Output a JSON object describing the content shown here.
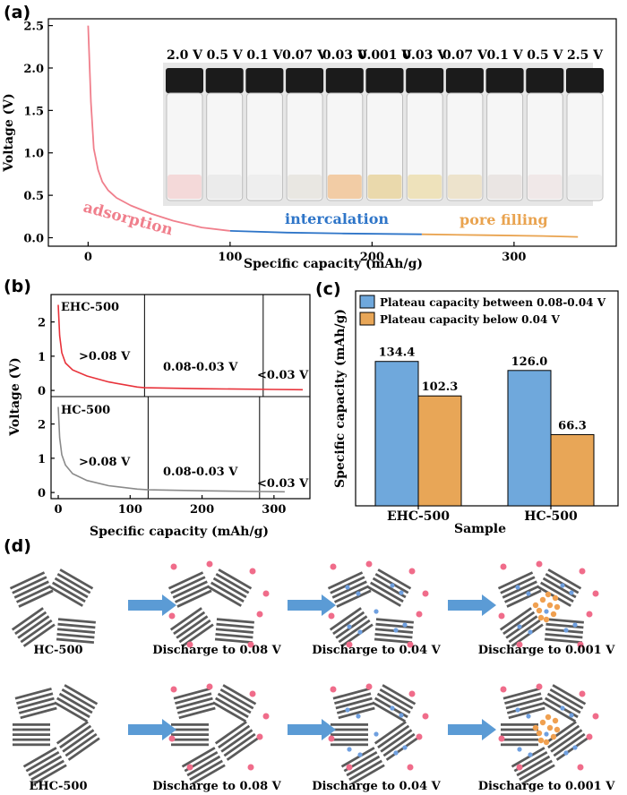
{
  "panels": {
    "a": "(a)",
    "b": "(b)",
    "c": "(c)",
    "d": "(d)"
  },
  "colors": {
    "red": "#e8323a",
    "pink": "#f07f8c",
    "blue": "#2e75c8",
    "orange": "#e9a34f",
    "gray": "#8a8a8a",
    "barBlue": "#6fa8dc",
    "barOrange": "#e8a657",
    "stack": "#5a5a5a",
    "arrow": "#5b9bd5",
    "dotPink": "#f06c8a",
    "dotBlue": "#6fa0e0",
    "dotOrange": "#f0a050"
  },
  "chart_data": [
    {
      "id": "a",
      "type": "line",
      "xlabel": "Specific capacity (mAh/g)",
      "ylabel": "Voltage (V)",
      "xlim": [
        -28,
        372
      ],
      "ylim": [
        -0.1,
        2.58
      ],
      "xticks": [
        0,
        100,
        200,
        300
      ],
      "yticks": [
        0.0,
        0.5,
        1.0,
        1.5,
        2.0,
        2.5
      ],
      "ytick_labels": [
        "0.0",
        "0.5",
        "1.0",
        "1.5",
        "2.0",
        "2.5"
      ],
      "series": [
        {
          "name": "adsorption",
          "x": [
            0,
            2,
            4,
            7,
            10,
            14,
            20,
            30,
            45,
            60,
            80,
            100
          ],
          "y": [
            2.5,
            1.6,
            1.05,
            0.8,
            0.66,
            0.56,
            0.47,
            0.38,
            0.28,
            0.2,
            0.12,
            0.08
          ]
        },
        {
          "name": "intercalation",
          "x": [
            100,
            140,
            180,
            235
          ],
          "y": [
            0.08,
            0.06,
            0.05,
            0.04
          ]
        },
        {
          "name": "pore filling",
          "x": [
            235,
            280,
            320,
            345
          ],
          "y": [
            0.04,
            0.03,
            0.02,
            0.01
          ]
        }
      ],
      "region_labels": [
        "adsorption",
        "intercalation",
        "pore filling"
      ],
      "vial_labels": [
        "2.0 V",
        "0.5 V",
        "0.1 V",
        "0.07 V",
        "0.03 V",
        "0.001 V",
        "0.03 V",
        "0.07 V",
        "0.1 V",
        "0.5 V",
        "2.5 V"
      ]
    },
    {
      "id": "b",
      "type": "line",
      "xlabel": "Specific capacity (mAh/g)",
      "ylabel": "Voltage (V)",
      "xlim": [
        -10,
        350
      ],
      "xticks": [
        0,
        100,
        200,
        300
      ],
      "subplots": [
        {
          "name": "EHC-500",
          "ylim": [
            -0.18,
            2.8
          ],
          "yticks": [
            0,
            1,
            2
          ],
          "x": [
            0,
            2,
            5,
            10,
            20,
            40,
            70,
            110,
            120,
            200,
            300,
            340
          ],
          "y": [
            2.5,
            1.6,
            1.1,
            0.8,
            0.6,
            0.42,
            0.25,
            0.1,
            0.08,
            0.05,
            0.03,
            0.02
          ],
          "dividers": [
            120,
            285
          ],
          "labels": [
            ">0.08 V",
            "0.08-0.03 V",
            "<0.03 V"
          ]
        },
        {
          "name": "HC-500",
          "ylim": [
            -0.18,
            2.8
          ],
          "yticks": [
            0,
            1,
            2
          ],
          "x": [
            0,
            2,
            5,
            10,
            20,
            40,
            70,
            110,
            125,
            200,
            280,
            315
          ],
          "y": [
            2.5,
            1.6,
            1.1,
            0.8,
            0.55,
            0.35,
            0.2,
            0.1,
            0.08,
            0.05,
            0.03,
            0.02
          ],
          "dividers": [
            125,
            280
          ],
          "labels": [
            ">0.08 V",
            "0.08-0.03 V",
            "<0.03 V"
          ]
        }
      ]
    },
    {
      "id": "c",
      "type": "bar",
      "xlabel": "Sample",
      "ylabel": "Specific capacity (mAh/g)",
      "categories": [
        "EHC-500",
        "HC-500"
      ],
      "ylim": [
        0,
        200
      ],
      "series": [
        {
          "name": "Plateau capacity between 0.08-0.04 V",
          "values": [
            134.4,
            126.0
          ],
          "labels": [
            "134.4",
            "126.0"
          ]
        },
        {
          "name": "Plateau capacity below 0.04 V",
          "values": [
            102.3,
            66.3
          ],
          "labels": [
            "102.3",
            "66.3"
          ]
        }
      ]
    }
  ],
  "schematic": {
    "row1_labels": [
      "HC-500",
      "Discharge to 0.08 V",
      "Discharge to 0.04 V",
      "Discharge to 0.001 V"
    ],
    "row2_labels": [
      "EHC-500",
      "Discharge to 0.08 V",
      "Discharge to 0.04 V",
      "Discharge to 0.001 V"
    ]
  }
}
